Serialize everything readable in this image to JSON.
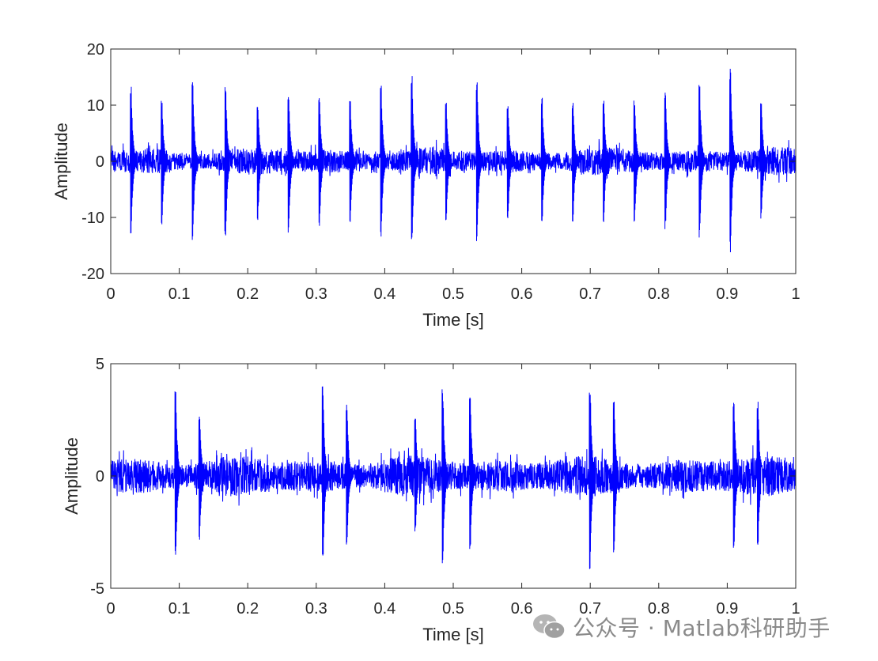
{
  "chart_data": [
    {
      "type": "line",
      "xlabel": "Time [s]",
      "ylabel": "Amplitude",
      "xlim": [
        0,
        1
      ],
      "ylim": [
        -20,
        20
      ],
      "xticks": [
        "0",
        "0.1",
        "0.2",
        "0.3",
        "0.4",
        "0.5",
        "0.6",
        "0.7",
        "0.8",
        "0.9",
        "1"
      ],
      "yticks": [
        "20",
        "10",
        "0",
        "-10",
        "-20"
      ],
      "ytick_values": [
        20,
        10,
        0,
        -10,
        -20
      ],
      "series_color": "#0000ff",
      "noise_amplitude": 3,
      "impulses": [
        {
          "t": 0.03,
          "peak": 13.3,
          "trough": -13.3
        },
        {
          "t": 0.075,
          "peak": 11.3,
          "trough": -11.3
        },
        {
          "t": 0.12,
          "peak": 14.6,
          "trough": -14.6
        },
        {
          "t": 0.168,
          "peak": 13.6,
          "trough": -13.6
        },
        {
          "t": 0.215,
          "peak": 10.6,
          "trough": -10.6
        },
        {
          "t": 0.26,
          "peak": 12.9,
          "trough": -12.9
        },
        {
          "t": 0.305,
          "peak": 12.0,
          "trough": -12.0
        },
        {
          "t": 0.35,
          "peak": 11.0,
          "trough": -11.0
        },
        {
          "t": 0.395,
          "peak": 13.8,
          "trough": -13.8
        },
        {
          "t": 0.44,
          "peak": 15.8,
          "trough": -15.8
        },
        {
          "t": 0.49,
          "peak": 11.0,
          "trough": -11.0
        },
        {
          "t": 0.535,
          "peak": 14.4,
          "trough": -14.4
        },
        {
          "t": 0.58,
          "peak": 11.0,
          "trough": -11.0
        },
        {
          "t": 0.63,
          "peak": 11.3,
          "trough": -11.3
        },
        {
          "t": 0.675,
          "peak": 11.0,
          "trough": -11.0
        },
        {
          "t": 0.72,
          "peak": 11.0,
          "trough": -11.0
        },
        {
          "t": 0.765,
          "peak": 11.0,
          "trough": -11.0
        },
        {
          "t": 0.81,
          "peak": 12.3,
          "trough": -12.3
        },
        {
          "t": 0.86,
          "peak": 13.7,
          "trough": -13.7
        },
        {
          "t": 0.905,
          "peak": 16.5,
          "trough": -16.5
        },
        {
          "t": 0.95,
          "peak": 10.6,
          "trough": -10.6
        }
      ]
    },
    {
      "type": "line",
      "xlabel": "Time [s]",
      "ylabel": "Amplitude",
      "xlim": [
        0,
        1
      ],
      "ylim": [
        -5,
        5
      ],
      "xticks": [
        "0",
        "0.1",
        "0.2",
        "0.3",
        "0.4",
        "0.5",
        "0.6",
        "0.7",
        "0.8",
        "0.9",
        "1"
      ],
      "yticks": [
        "5",
        "0",
        "-5"
      ],
      "ytick_values": [
        5,
        0,
        -5
      ],
      "series_color": "#0000ff",
      "noise_amplitude": 1.1,
      "impulses": [
        {
          "t": 0.095,
          "peak": 3.9,
          "trough": -3.9
        },
        {
          "t": 0.13,
          "peak": 2.9,
          "trough": -2.9
        },
        {
          "t": 0.31,
          "peak": 4.0,
          "trough": -4.0
        },
        {
          "t": 0.345,
          "peak": 3.3,
          "trough": -3.3
        },
        {
          "t": 0.445,
          "peak": 2.7,
          "trough": -2.7
        },
        {
          "t": 0.485,
          "peak": 3.9,
          "trough": -3.9
        },
        {
          "t": 0.525,
          "peak": 3.6,
          "trough": -3.6
        },
        {
          "t": 0.7,
          "peak": 4.2,
          "trough": -4.2
        },
        {
          "t": 0.735,
          "peak": 3.5,
          "trough": -3.5
        },
        {
          "t": 0.91,
          "peak": 3.6,
          "trough": -3.6
        },
        {
          "t": 0.945,
          "peak": 3.4,
          "trough": -3.4
        }
      ]
    }
  ],
  "watermark": {
    "text": "公众号 · Matlab科研助手",
    "icon": "wechat-icon",
    "color": "#8a8a8a"
  }
}
